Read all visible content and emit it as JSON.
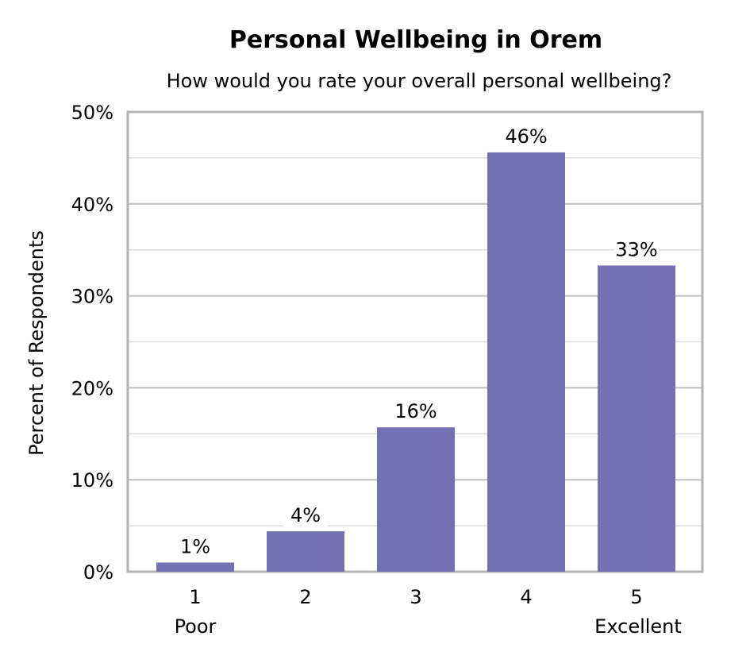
{
  "chart_data": {
    "type": "bar",
    "title": "Personal Wellbeing in Orem",
    "subtitle": "How would you rate your overall personal wellbeing?",
    "xlabel": "",
    "ylabel": "Percent of Respondents",
    "categories": [
      "1",
      "2",
      "3",
      "4",
      "5"
    ],
    "category_sublabels": [
      "Poor",
      "",
      "",
      "",
      "Excellent"
    ],
    "values": [
      1,
      4,
      16,
      46,
      33
    ],
    "plotted_values": [
      1.0,
      4.4,
      15.7,
      45.6,
      33.3
    ],
    "data_labels": [
      "1%",
      "4%",
      "16%",
      "46%",
      "33%"
    ],
    "ylim": [
      0,
      50
    ],
    "yticks": [
      0,
      10,
      20,
      30,
      40,
      50
    ],
    "ytick_labels": [
      "0%",
      "10%",
      "20%",
      "30%",
      "40%",
      "50%"
    ],
    "grid": true,
    "legend": "none",
    "colors": {
      "bar": "#7570b3",
      "frame": "#b3b3b3",
      "grid_major": "#bfbfbf",
      "grid_minor": "#dcdcdc"
    }
  }
}
